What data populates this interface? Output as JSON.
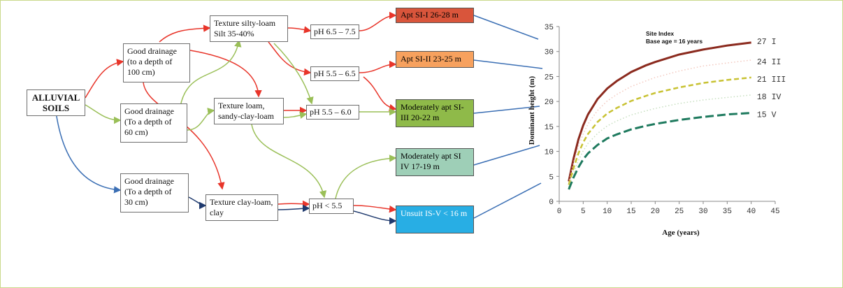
{
  "flow": {
    "root": [
      "ALLUVIAL",
      "SOILS"
    ],
    "drainage": [
      [
        "Good drainage",
        "(to a depth of",
        "100 cm)"
      ],
      [
        "Good drainage",
        "(To a depth of",
        "60 cm)"
      ],
      [
        "Good drainage",
        "(To a depth of",
        "30 cm)"
      ]
    ],
    "texture": [
      [
        "Texture silty-loam",
        "Silt 35-40%"
      ],
      [
        "Texture loam,",
        "sandy-clay-loam"
      ],
      [
        "Texture clay-loam,",
        "clay"
      ]
    ],
    "ph": [
      "pH 6.5 – 7.5",
      "pH 5.5 – 6.5",
      "pH 5.5 – 6.0",
      "pH  < 5.5"
    ],
    "results": [
      {
        "lines": [
          "Apt  SI-I  26-28 m"
        ],
        "color": "#d9553b"
      },
      {
        "lines": [
          "Apt SI-II  23-25 m"
        ],
        "color": "#f7a15e"
      },
      {
        "lines": [
          "Moderately apt",
          "SI-III 20-22 m"
        ],
        "color": "#8fba49"
      },
      {
        "lines": [
          "Moderately apt",
          "SI IV  17-19 m"
        ],
        "color": "#9ecfb7"
      },
      {
        "lines": [
          "Unsuit",
          "IS-V < 16 m"
        ],
        "color": "#28aee4"
      }
    ],
    "arrow_colors": {
      "red": "#e8352a",
      "green": "#9abf57",
      "blue": "#3b6fb4",
      "navy": "#1f3a6e"
    }
  },
  "chart_data": {
    "type": "line",
    "legend_title": [
      "Site Index",
      "Base age = 16 years"
    ],
    "xlabel": "Age (years)",
    "ylabel": "Dominant height (m)",
    "xlim": [
      0,
      45
    ],
    "ylim": [
      0,
      35
    ],
    "xticks": [
      0,
      5,
      10,
      15,
      20,
      25,
      30,
      35,
      40,
      45
    ],
    "yticks": [
      0,
      5,
      10,
      15,
      20,
      25,
      30,
      35
    ],
    "series": [
      {
        "name": "27 I",
        "color": "#8b2a1e",
        "style": "solid",
        "x": [
          2,
          3,
          4,
          5,
          6,
          8,
          10,
          12,
          15,
          18,
          20,
          25,
          30,
          35,
          40
        ],
        "y": [
          4.0,
          8.6,
          12.4,
          15.2,
          17.4,
          20.5,
          22.6,
          24.1,
          25.9,
          27.2,
          27.9,
          29.4,
          30.4,
          31.2,
          31.8
        ]
      },
      {
        "name": "24 II",
        "color": "#f3c9bf",
        "style": "dotted",
        "x": [
          2,
          3,
          4,
          5,
          6,
          8,
          10,
          12,
          15,
          18,
          20,
          25,
          30,
          35,
          40
        ],
        "y": [
          3.7,
          7.7,
          11.0,
          13.5,
          15.5,
          18.2,
          20.1,
          21.4,
          23.0,
          24.1,
          24.8,
          26.1,
          27.1,
          27.7,
          28.3
        ]
      },
      {
        "name": "21 III",
        "color": "#c8c233",
        "style": "dash",
        "x": [
          2,
          3,
          4,
          5,
          6,
          8,
          10,
          12,
          15,
          18,
          20,
          25,
          30,
          35,
          40
        ],
        "y": [
          3.3,
          6.7,
          9.6,
          11.8,
          13.5,
          15.9,
          17.6,
          18.7,
          20.1,
          21.1,
          21.7,
          22.8,
          23.7,
          24.3,
          24.8
        ]
      },
      {
        "name": "18 IV",
        "color": "#c7dfc0",
        "style": "dotted",
        "x": [
          2,
          3,
          4,
          5,
          6,
          8,
          10,
          12,
          15,
          18,
          20,
          25,
          30,
          35,
          40
        ],
        "y": [
          2.9,
          5.7,
          8.2,
          10.1,
          11.6,
          13.6,
          15.1,
          16.1,
          17.3,
          18.1,
          18.6,
          19.6,
          20.3,
          20.8,
          21.3
        ]
      },
      {
        "name": "15 V",
        "color": "#1e7a5e",
        "style": "longdash",
        "x": [
          2,
          3,
          4,
          5,
          6,
          8,
          10,
          12,
          15,
          18,
          20,
          25,
          30,
          35,
          40
        ],
        "y": [
          2.4,
          4.8,
          6.8,
          8.4,
          9.6,
          11.3,
          12.6,
          13.4,
          14.4,
          15.1,
          15.5,
          16.3,
          16.9,
          17.4,
          17.7
        ]
      }
    ],
    "right_labels": [
      "27 I",
      "24 II",
      "21 III",
      "18 IV",
      "15 V"
    ]
  }
}
